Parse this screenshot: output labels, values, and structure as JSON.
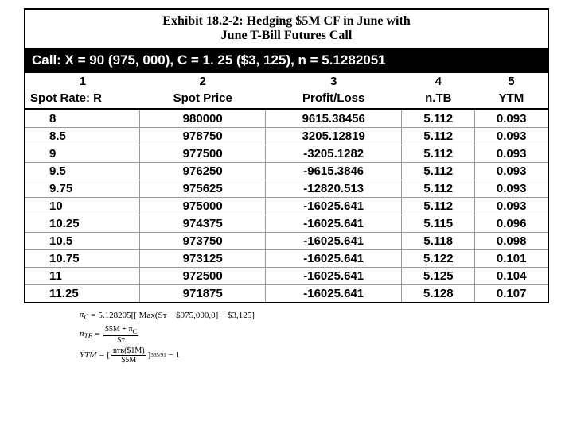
{
  "title": {
    "line1": "Exhibit 18.2-2: Hedging $5M CF in June with",
    "line2": "June T-Bill Futures Call"
  },
  "headerBar": "Call: X = 90 (975, 000), C = 1. 25 ($3, 125), n = 5.1282051",
  "columns": {
    "nums": [
      "1",
      "2",
      "3",
      "4",
      "5"
    ],
    "labels": [
      "Spot Rate: R",
      "Spot Price",
      "Profit/Loss",
      "n.TB",
      "YTM"
    ]
  },
  "rows": [
    {
      "r": "8",
      "sp": "980000",
      "pl": "9615.38456",
      "ntb": "5.112",
      "ytm": "0.093"
    },
    {
      "r": "8.5",
      "sp": "978750",
      "pl": "3205.12819",
      "ntb": "5.112",
      "ytm": "0.093"
    },
    {
      "r": "9",
      "sp": "977500",
      "pl": "-3205.1282",
      "ntb": "5.112",
      "ytm": "0.093"
    },
    {
      "r": "9.5",
      "sp": "976250",
      "pl": "-9615.3846",
      "ntb": "5.112",
      "ytm": "0.093"
    },
    {
      "r": "9.75",
      "sp": "975625",
      "pl": "-12820.513",
      "ntb": "5.112",
      "ytm": "0.093"
    },
    {
      "r": "10",
      "sp": "975000",
      "pl": "-16025.641",
      "ntb": "5.112",
      "ytm": "0.093"
    },
    {
      "r": "10.25",
      "sp": "974375",
      "pl": "-16025.641",
      "ntb": "5.115",
      "ytm": "0.096"
    },
    {
      "r": "10.5",
      "sp": "973750",
      "pl": "-16025.641",
      "ntb": "5.118",
      "ytm": "0.098"
    },
    {
      "r": "10.75",
      "sp": "973125",
      "pl": "-16025.641",
      "ntb": "5.122",
      "ytm": "0.101"
    },
    {
      "r": "11",
      "sp": "972500",
      "pl": "-16025.641",
      "ntb": "5.125",
      "ytm": "0.104"
    },
    {
      "r": "11.25",
      "sp": "971875",
      "pl": "-16025.641",
      "ntb": "5.128",
      "ytm": "0.107"
    }
  ],
  "formulas": {
    "f1_lhs": "π",
    "f1_sub": "C",
    "f1_rhs": "= 5.128205[[ Max(Sᴛ − $975,000,0] − $3,125]",
    "f2_lhs": "n",
    "f2_sub": "TB",
    "f2_num": "$5M + π",
    "f2_numsub": "C",
    "f2_den": "Sᴛ",
    "f3_lhs": "YTM =",
    "f3_num": "nᴛʙ($1M)",
    "f3_den": "$5M",
    "f3_exp": "365/91",
    "f3_tail": "− 1"
  },
  "style": {
    "titleBorder": "#000000",
    "headerBg": "#000000",
    "headerFg": "#ffffff",
    "rowBorder": "#999999",
    "bodyBg": "#ffffff"
  }
}
